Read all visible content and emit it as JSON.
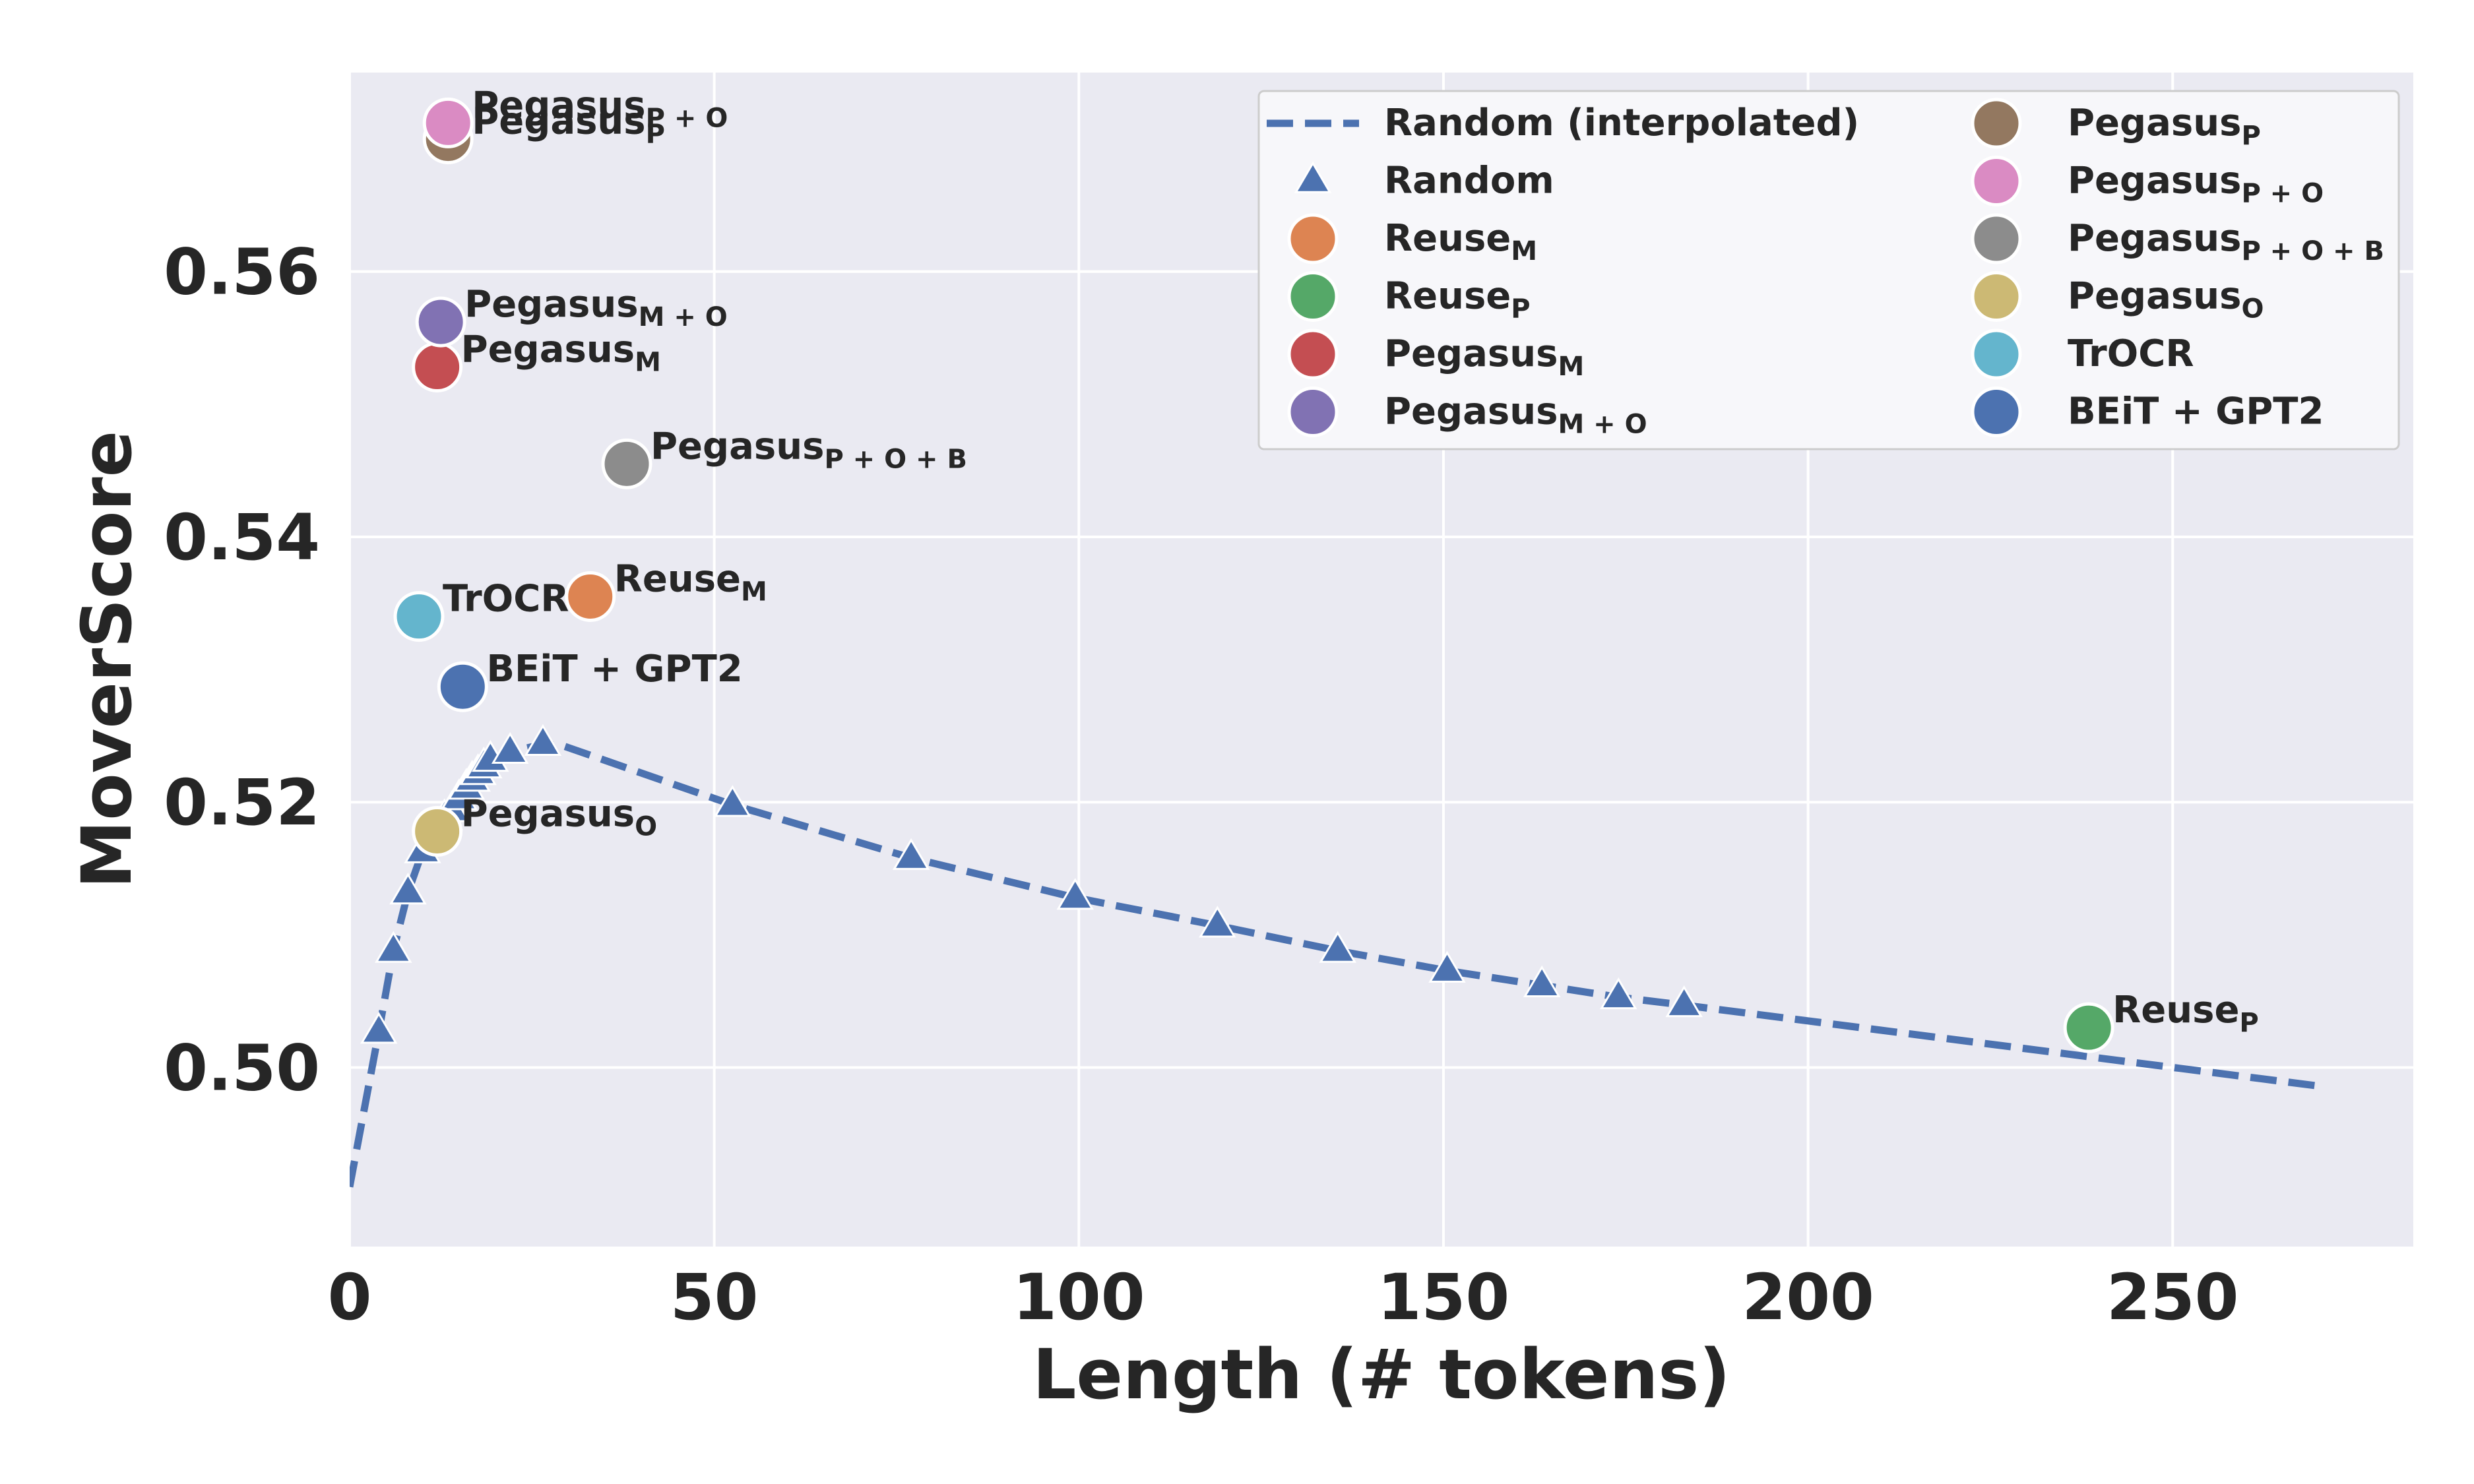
{
  "chart_data": {
    "type": "scatter",
    "xlabel": "Length (# tokens)",
    "ylabel": "MoverScore",
    "xlim": [
      0,
      283
    ],
    "ylim": [
      0.4865,
      0.575
    ],
    "x_ticks": [
      0,
      50,
      100,
      150,
      200,
      250
    ],
    "x_tick_labels": [
      "0",
      "50",
      "100",
      "150",
      "200",
      "250"
    ],
    "y_ticks": [
      0.5,
      0.52,
      0.54,
      0.56
    ],
    "y_tick_labels": [
      "0.50",
      "0.52",
      "0.54",
      "0.56"
    ],
    "grid": true,
    "legend_position": "top-right",
    "interpolated": {
      "name": "Random (interpolated)",
      "color": "#4c72b0",
      "style": "dashed",
      "x": [
        0,
        4,
        6,
        8,
        10,
        12,
        14,
        16,
        18,
        20,
        22,
        26,
        29,
        52.5,
        77,
        99.5,
        119,
        135.5,
        150.5,
        163.5,
        174,
        183,
        270
      ],
      "y": [
        0.491,
        0.5027,
        0.5088,
        0.5132,
        0.5163,
        0.5185,
        0.5202,
        0.5215,
        0.5225,
        0.5232,
        0.5238,
        0.5243,
        0.5243,
        0.5198,
        0.5158,
        0.5128,
        0.5107,
        0.5088,
        0.5073,
        0.5062,
        0.5053,
        0.5047,
        0.4986
      ]
    },
    "random": {
      "name": "Random",
      "color": "#4c72b0",
      "marker": "triangle",
      "x": [
        4,
        6,
        8,
        10,
        13,
        14,
        15,
        16,
        16.8,
        17.6,
        18.4,
        19.3,
        22,
        26.5,
        52.5,
        77,
        99.5,
        119,
        135.5,
        150.5,
        163.5,
        174,
        183
      ],
      "y": [
        0.5027,
        0.5088,
        0.5132,
        0.5163,
        0.5188,
        0.5194,
        0.5203,
        0.5211,
        0.5217,
        0.5222,
        0.5227,
        0.5232,
        0.5238,
        0.5244,
        0.5198,
        0.5158,
        0.5128,
        0.5107,
        0.5088,
        0.5073,
        0.5062,
        0.5053,
        0.5047
      ]
    },
    "points": [
      {
        "base": "Reuse",
        "sub": "M",
        "x": 33,
        "y": 0.5355,
        "color": "#dd8452"
      },
      {
        "base": "Reuse",
        "sub": "P",
        "x": 238.5,
        "y": 0.503,
        "color": "#55a868"
      },
      {
        "base": "Pegasus",
        "sub": "M",
        "x": 12,
        "y": 0.5528,
        "color": "#c44e52"
      },
      {
        "base": "Pegasus",
        "sub": "M + O",
        "x": 12.5,
        "y": 0.5562,
        "color": "#8172b3"
      },
      {
        "base": "Pegasus",
        "sub": "P",
        "x": 13.5,
        "y": 0.57,
        "color": "#937860"
      },
      {
        "base": "Pegasus",
        "sub": "P + O",
        "x": 13.5,
        "y": 0.5712,
        "color": "#da8bc3"
      },
      {
        "base": "Pegasus",
        "sub": "P + O + B",
        "x": 38,
        "y": 0.5455,
        "color": "#8c8c8c"
      },
      {
        "base": "Pegasus",
        "sub": "O",
        "x": 12,
        "y": 0.5178,
        "color": "#ccb974"
      },
      {
        "base": "TrOCR",
        "sub": "",
        "x": 9.5,
        "y": 0.534,
        "color": "#64b5cd"
      },
      {
        "base": "BEiT + GPT2",
        "sub": "",
        "x": 15.5,
        "y": 0.5287,
        "color": "#4c72b0"
      }
    ],
    "legend": [
      {
        "base": "Random (interpolated)",
        "sub": "",
        "kind": "line",
        "color": "#4c72b0"
      },
      {
        "base": "Random",
        "sub": "",
        "kind": "triangle",
        "color": "#4c72b0"
      },
      {
        "base": "Reuse",
        "sub": "M",
        "kind": "circle",
        "color": "#dd8452"
      },
      {
        "base": "Reuse",
        "sub": "P",
        "kind": "circle",
        "color": "#55a868"
      },
      {
        "base": "Pegasus",
        "sub": "M",
        "kind": "circle",
        "color": "#c44e52"
      },
      {
        "base": "Pegasus",
        "sub": "M + O",
        "kind": "circle",
        "color": "#8172b3"
      },
      {
        "base": "Pegasus",
        "sub": "P",
        "kind": "circle",
        "color": "#937860"
      },
      {
        "base": "Pegasus",
        "sub": "P + O",
        "kind": "circle",
        "color": "#da8bc3"
      },
      {
        "base": "Pegasus",
        "sub": "P + O + B",
        "kind": "circle",
        "color": "#8c8c8c"
      },
      {
        "base": "Pegasus",
        "sub": "O",
        "kind": "circle",
        "color": "#ccb974"
      },
      {
        "base": "TrOCR",
        "sub": "",
        "kind": "circle",
        "color": "#64b5cd"
      },
      {
        "base": "BEiT + GPT2",
        "sub": "",
        "kind": "circle",
        "color": "#4c72b0"
      }
    ],
    "colors": {
      "plot_background": "#eaeaf2",
      "grid": "#ffffff"
    }
  }
}
